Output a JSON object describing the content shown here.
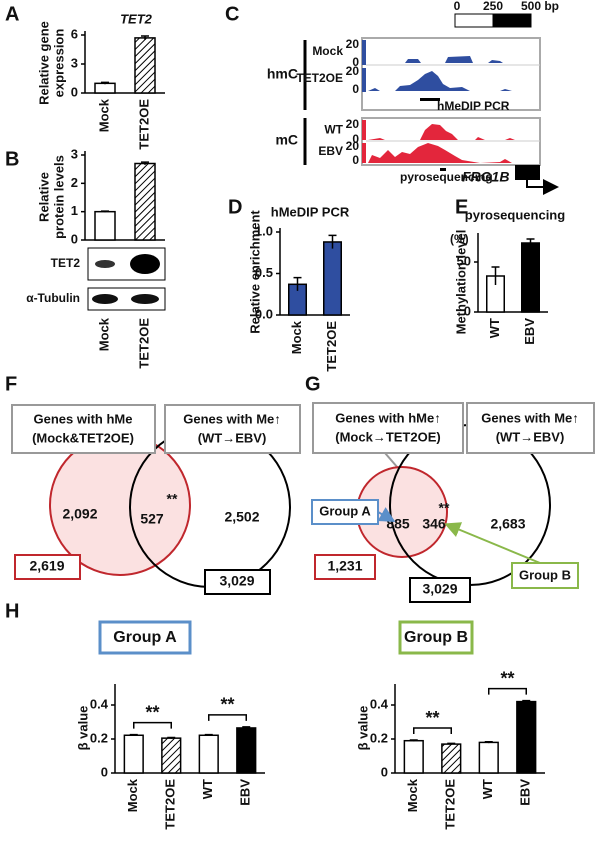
{
  "labels": [
    "A",
    "B",
    "C",
    "D",
    "E",
    "F",
    "G",
    "H"
  ],
  "chart_data": [
    {
      "type": "bar",
      "title": "TET2",
      "ylabel": [
        "Relative gene",
        "expression"
      ],
      "categories": [
        "Mock",
        "TET2OE"
      ],
      "values": [
        1,
        5.7
      ],
      "errors": [
        0.1,
        0.2
      ],
      "colors": [
        "#ffffff",
        "#ffffff"
      ],
      "hatched": [
        false,
        true
      ],
      "ylim": [
        0,
        6
      ],
      "yticks": [
        0,
        3,
        6
      ]
    },
    {
      "type": "bar",
      "ylabel": [
        "Relative",
        "protein levels"
      ],
      "categories": [
        "Mock",
        "TET2OE"
      ],
      "values": [
        1,
        2.7
      ],
      "errors": [
        0.02,
        0.05
      ],
      "colors": [
        "#ffffff",
        "#ffffff"
      ],
      "hatched": [
        false,
        true
      ],
      "ylim": [
        0,
        3
      ],
      "yticks": [
        0,
        1,
        2,
        3
      ]
    },
    {
      "type": "bar",
      "title": "hMeDIP PCR",
      "ylabel": [
        "Relative enrichment"
      ],
      "categories": [
        "Mock",
        "TET2OE"
      ],
      "values": [
        0.37,
        0.88
      ],
      "errors": [
        0.08,
        0.08
      ],
      "colors": [
        "#2f4ea0",
        "#2f4ea0"
      ],
      "hatched": [
        false,
        false
      ],
      "ylim": [
        0,
        1.0
      ],
      "yticks": [
        {
          "value": 0,
          "label": "0.0"
        },
        0.5,
        {
          "value": 1.0,
          "label": "1.0"
        }
      ]
    },
    {
      "type": "bar",
      "title": "pyrosequencing",
      "yunit": "(%)",
      "ylabel": [
        "Methylation level"
      ],
      "categories": [
        "WT",
        "EBV"
      ],
      "values": [
        36,
        69
      ],
      "errors": [
        9,
        4
      ],
      "colors": [
        "#ffffff",
        "#000000"
      ],
      "hatched": [
        false,
        false
      ],
      "ylim": [
        0,
        75
      ],
      "yticks": [
        0,
        50
      ]
    },
    {
      "type": "bar",
      "title": "Group A",
      "title_box_color": "#5b8fc9",
      "ylabel": [
        "β value"
      ],
      "categories": [
        "Mock",
        "TET2OE",
        "WT",
        "EBV"
      ],
      "values": [
        0.222,
        0.205,
        0.222,
        0.265
      ],
      "errors": [
        0.004,
        0.004,
        0.004,
        0.006
      ],
      "colors": [
        "#ffffff",
        "#ffffff",
        "#ffffff",
        "#000000"
      ],
      "hatched": [
        false,
        true,
        false,
        false
      ],
      "significance": [
        "**",
        "**"
      ],
      "ylim": [
        0,
        0.5
      ],
      "yticks": [
        0,
        0.2,
        0.4
      ]
    },
    {
      "type": "bar",
      "title": "Group B",
      "title_box_color": "#8ab84a",
      "ylabel": [
        "β value"
      ],
      "categories": [
        "Mock",
        "TET2OE",
        "WT",
        "EBV"
      ],
      "values": [
        0.19,
        0.17,
        0.18,
        0.42
      ],
      "errors": [
        0.004,
        0.004,
        0.004,
        0.006
      ],
      "colors": [
        "#ffffff",
        "#ffffff",
        "#ffffff",
        "#000000"
      ],
      "hatched": [
        false,
        true,
        false,
        false
      ],
      "significance": [
        "**",
        "**"
      ],
      "ylim": [
        0,
        0.5
      ],
      "yticks": [
        0,
        0.2,
        0.4
      ]
    }
  ],
  "blot": {
    "rows": [
      "TET2",
      "α-Tubulin"
    ]
  },
  "tracks": {
    "scale": [
      "0",
      "250",
      "500 bp"
    ],
    "groups": [
      {
        "name": "hmC",
        "tracks": [
          {
            "name": "Mock",
            "max": 20,
            "min": 0
          },
          {
            "name": "TET2OE",
            "max": 20,
            "min": 0
          }
        ]
      },
      {
        "name": "mC",
        "tracks": [
          {
            "name": "WT",
            "max": 20,
            "min": 0
          },
          {
            "name": "EBV",
            "max": 20,
            "min": 0
          }
        ]
      }
    ],
    "pcr": "hMeDIP PCR",
    "pyro": "pyrosequencing",
    "gene": "FRG1B"
  },
  "venn_f": {
    "left_box": [
      "Genes with hMe",
      "(Mock&TET2OE)"
    ],
    "right_box": [
      "Genes with Me↑",
      "(WT→EBV)"
    ],
    "left_only": "2,092",
    "overlap": "527",
    "significance": "**",
    "right_only": "2,502",
    "left_total": "2,619",
    "right_total": "3,029"
  },
  "venn_g": {
    "left_box": [
      "Genes with hMe↑",
      "(Mock→TET2OE)"
    ],
    "right_box": [
      "Genes with Me↑",
      "(WT→EBV)"
    ],
    "left_only": "885",
    "overlap": "346",
    "significance": "**",
    "right_only": "2,683",
    "left_total": "1,231",
    "right_total": "3,029",
    "group_a": "Group A",
    "group_b": "Group B"
  }
}
